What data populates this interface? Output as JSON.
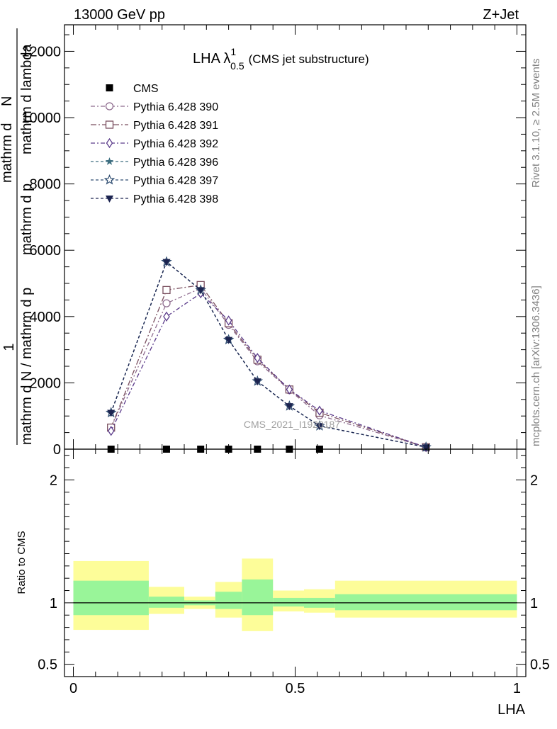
{
  "header": {
    "left": "13000 GeV pp",
    "right": "Z+Jet"
  },
  "side": {
    "rivet": "Rivet 3.1.10, ≥ 2.5M events",
    "mcplots": "mcplots.cern.ch [arXiv:1306.3436]"
  },
  "watermark": "CMS_2021_I1920187",
  "chart_data": [
    {
      "type": "line",
      "title_main": "LHA λ",
      "title_sup": "1",
      "title_sub": "0.5",
      "title_rest": "(CMS jet substructure)",
      "ylabel_lines": [
        "1",
        "mathrm d N / mathrm d p",
        "mathrm d p",
        "mathrm d lambda",
        "mathrm d",
        "N"
      ],
      "ylim": [
        0,
        12800
      ],
      "yticks": [
        0,
        2000,
        4000,
        6000,
        8000,
        10000,
        12000
      ],
      "ytick_labels": [
        "0",
        "2000",
        "4000",
        "6000",
        "8000",
        "10000",
        "12000"
      ],
      "xlim": [
        -0.02,
        1.02
      ],
      "x": [
        0.085,
        0.21,
        0.287,
        0.35,
        0.415,
        0.487,
        0.555,
        0.795
      ],
      "series": [
        {
          "name": "CMS",
          "marker": "square-filled",
          "color": "#000000",
          "dash": "",
          "x": [
            0.085,
            0.21,
            0.287,
            0.35,
            0.415,
            0.487,
            0.555
          ],
          "values": [
            0,
            0,
            0,
            0,
            0,
            0,
            0
          ]
        },
        {
          "name": "Pythia 6.428 390",
          "marker": "circle-open",
          "color": "#8e6b8e",
          "dash": "6,3,2,3",
          "values": [
            650,
            4400,
            4850,
            3750,
            2650,
            1780,
            1020,
            60
          ]
        },
        {
          "name": "Pythia 6.428 391",
          "marker": "square-open",
          "color": "#7a4f5f",
          "dash": "8,3,2,3",
          "values": [
            650,
            4800,
            4950,
            3800,
            2700,
            1800,
            1100,
            60
          ]
        },
        {
          "name": "Pythia 6.428 392",
          "marker": "diamond-open",
          "color": "#5a3a8a",
          "dash": "6,3,2,3",
          "values": [
            550,
            4000,
            4700,
            3880,
            2750,
            1800,
            1160,
            60
          ]
        },
        {
          "name": "Pythia 6.428 396",
          "marker": "star-filled",
          "color": "#3d6e80",
          "dash": "4,3",
          "values": [
            1100,
            5650,
            4800,
            3300,
            2050,
            1300,
            700,
            60
          ]
        },
        {
          "name": "Pythia 6.428 397",
          "marker": "star-open",
          "color": "#2e4c70",
          "dash": "4,3",
          "values": [
            1100,
            5650,
            4800,
            3300,
            2050,
            1300,
            700,
            60
          ]
        },
        {
          "name": "Pythia 6.428 398",
          "marker": "triangle-down-filled",
          "color": "#1c2450",
          "dash": "4,3",
          "values": [
            1100,
            5650,
            4800,
            3300,
            2050,
            1300,
            700,
            60
          ]
        }
      ]
    },
    {
      "type": "area",
      "xlabel": "LHA",
      "ylabel": "Ratio to CMS",
      "ylim": [
        0.4,
        2.25
      ],
      "yticks": [
        0.5,
        1,
        2
      ],
      "ytick_labels": [
        "0.5",
        "1",
        "2"
      ],
      "xticks": [
        0,
        0.5,
        1
      ],
      "xtick_labels": [
        "0",
        "0.5",
        "1"
      ],
      "bins": [
        {
          "x0": 0.0,
          "x1": 0.17,
          "inner": [
            0.9,
            1.18
          ],
          "outer": [
            0.78,
            1.34
          ]
        },
        {
          "x0": 0.17,
          "x1": 0.25,
          "inner": [
            0.96,
            1.05
          ],
          "outer": [
            0.91,
            1.13
          ]
        },
        {
          "x0": 0.25,
          "x1": 0.32,
          "inner": [
            0.98,
            1.02
          ],
          "outer": [
            0.95,
            1.05
          ]
        },
        {
          "x0": 0.32,
          "x1": 0.38,
          "inner": [
            0.95,
            1.09
          ],
          "outer": [
            0.88,
            1.17
          ]
        },
        {
          "x0": 0.38,
          "x1": 0.45,
          "inner": [
            0.9,
            1.19
          ],
          "outer": [
            0.77,
            1.36
          ]
        },
        {
          "x0": 0.45,
          "x1": 0.52,
          "inner": [
            0.97,
            1.04
          ],
          "outer": [
            0.93,
            1.1
          ]
        },
        {
          "x0": 0.52,
          "x1": 0.59,
          "inner": [
            0.96,
            1.04
          ],
          "outer": [
            0.92,
            1.11
          ]
        },
        {
          "x0": 0.59,
          "x1": 1.0,
          "inner": [
            0.94,
            1.07
          ],
          "outer": [
            0.88,
            1.18
          ]
        }
      ],
      "inner_color": "#99f599",
      "outer_color": "#fdfd99"
    }
  ]
}
